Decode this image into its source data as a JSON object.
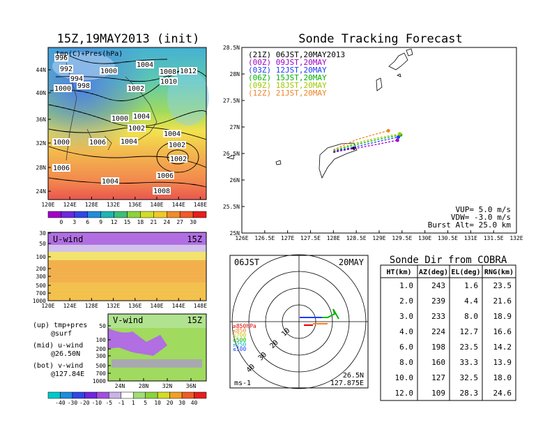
{
  "main_title": "15Z,19MAY2013 (init)",
  "surface_map": {
    "label": "tmp(C)+Pres(hPa)",
    "lat_ticks": [
      "44N",
      "40N",
      "36N",
      "32N",
      "28N",
      "24N"
    ],
    "lon_ticks": [
      "120E",
      "124E",
      "128E",
      "132E",
      "136E",
      "140E",
      "144E",
      "148E"
    ],
    "colorbar_ticks": [
      "0",
      "3",
      "6",
      "9",
      "12",
      "15",
      "18",
      "21",
      "24",
      "27",
      "30"
    ],
    "isobar_labels": [
      "996",
      "992",
      "1000",
      "1004",
      "1008",
      "1012",
      "994",
      "998",
      "1010",
      "1000",
      "1002",
      "1004",
      "1000",
      "1002",
      "1004",
      "1002",
      "1000",
      "1006",
      "1004",
      "1002",
      "1006",
      "1004",
      "1006",
      "1008"
    ]
  },
  "uwind_panel": {
    "label": "U-wind",
    "time": "15Z",
    "p_ticks": [
      "30",
      "50",
      "100",
      "200",
      "300",
      "500",
      "700",
      "1000"
    ],
    "lon_ticks": [
      "120E",
      "124E",
      "128E",
      "132E",
      "136E",
      "140E",
      "144E",
      "148E"
    ]
  },
  "vwind_panel": {
    "label": "V-wind",
    "time": "15Z",
    "p_ticks": [
      "50",
      "100",
      "200",
      "300",
      "500",
      "700",
      "1000"
    ],
    "lat_ticks": [
      "24N",
      "28N",
      "32N",
      "36N"
    ],
    "colorbar_ticks": [
      "-40",
      "-30",
      "-20",
      "-10",
      "-5",
      "-1",
      "1",
      "5",
      "10",
      "20",
      "30",
      "40"
    ]
  },
  "legend_notes": [
    {
      "a": "(up) tmp+pres",
      "b": "@surf"
    },
    {
      "a": "(mid) u-wind",
      "b": "@26.50N"
    },
    {
      "a": "(bot) v-wind",
      "b": "@127.84E"
    }
  ],
  "track_title": "Sonde Tracking Forecast",
  "chart_data": {
    "type": "line",
    "title": "Sonde Tracking Forecast",
    "xlim": [
      126.0,
      132.0
    ],
    "ylim": [
      25.0,
      28.5
    ],
    "x_ticks": [
      "126E",
      "126.5E",
      "127E",
      "127.5E",
      "128E",
      "128.5E",
      "129E",
      "129.5E",
      "130E",
      "130.5E",
      "131E",
      "131.5E",
      "132E"
    ],
    "y_ticks": [
      "28.5N",
      "28N",
      "27.5N",
      "27N",
      "26.5N",
      "26N",
      "25.5N",
      "25N"
    ],
    "series": [
      {
        "name": "(21Z) 06JST,20MAY2013",
        "color": "#000000",
        "x": [
          128.0,
          128.15,
          128.3,
          128.45
        ],
        "y": [
          26.52,
          26.55,
          26.58,
          26.6
        ]
      },
      {
        "name": "(00Z) 09JST,20MAY",
        "color": "#a000c8",
        "x": [
          128.0,
          128.5,
          129.0,
          129.4
        ],
        "y": [
          26.53,
          26.6,
          26.68,
          26.75
        ]
      },
      {
        "name": "(03Z) 12JST,20MAY",
        "color": "#1e3cff",
        "x": [
          128.0,
          128.5,
          129.0,
          129.42
        ],
        "y": [
          26.54,
          26.63,
          26.73,
          26.81
        ]
      },
      {
        "name": "(06Z) 15JST,20MAY",
        "color": "#00b400",
        "x": [
          128.0,
          128.5,
          129.0,
          129.47
        ],
        "y": [
          26.55,
          26.67,
          26.77,
          26.85
        ]
      },
      {
        "name": "(09Z) 18JST,20MAY",
        "color": "#a0c800",
        "x": [
          128.0,
          128.5,
          129.0,
          129.45
        ],
        "y": [
          26.56,
          26.7,
          26.8,
          26.87
        ]
      },
      {
        "name": "(12Z) 21JST,20MAY",
        "color": "#f08228",
        "x": [
          128.0,
          128.5,
          128.9,
          129.2
        ],
        "y": [
          26.57,
          26.76,
          26.86,
          26.93
        ]
      }
    ],
    "info": [
      "VUP= 5.0 m/s",
      "VDW= -3.0 m/s",
      "Burst Alt= 25.0 km"
    ]
  },
  "polar_panel": {
    "time": "06JST",
    "date": "20MAY",
    "range_labels": [
      "10",
      "20",
      "30",
      "40"
    ],
    "pressure_legend": [
      {
        "label": "≥850hPa",
        "color": "#e00000"
      },
      {
        "label": "≤850",
        "color": "#f08228"
      },
      {
        "label": "≤700",
        "color": "#c8c800"
      },
      {
        "label": "≤500",
        "color": "#00b400"
      },
      {
        "label": "≤250",
        "color": "#00b4c8"
      },
      {
        "label": "≤100",
        "color": "#1e3cff"
      }
    ],
    "units": "ms-1",
    "lat": "26.5N",
    "lon": "127.875E"
  },
  "table": {
    "title": "Sonde Dir from COBRA",
    "headers": [
      "HT(km)",
      "AZ(deg)",
      "EL(deg)",
      "RNG(km)"
    ],
    "rows": [
      [
        "1.0",
        "243",
        "1.6",
        "23.5"
      ],
      [
        "2.0",
        "239",
        "4.4",
        "21.6"
      ],
      [
        "3.0",
        "233",
        "8.0",
        "18.9"
      ],
      [
        "4.0",
        "224",
        "12.7",
        "16.6"
      ],
      [
        "6.0",
        "198",
        "23.5",
        "14.2"
      ],
      [
        "8.0",
        "160",
        "33.3",
        "13.9"
      ],
      [
        "10.0",
        "127",
        "32.5",
        "18.0"
      ],
      [
        "12.0",
        "109",
        "28.3",
        "24.6"
      ]
    ]
  }
}
